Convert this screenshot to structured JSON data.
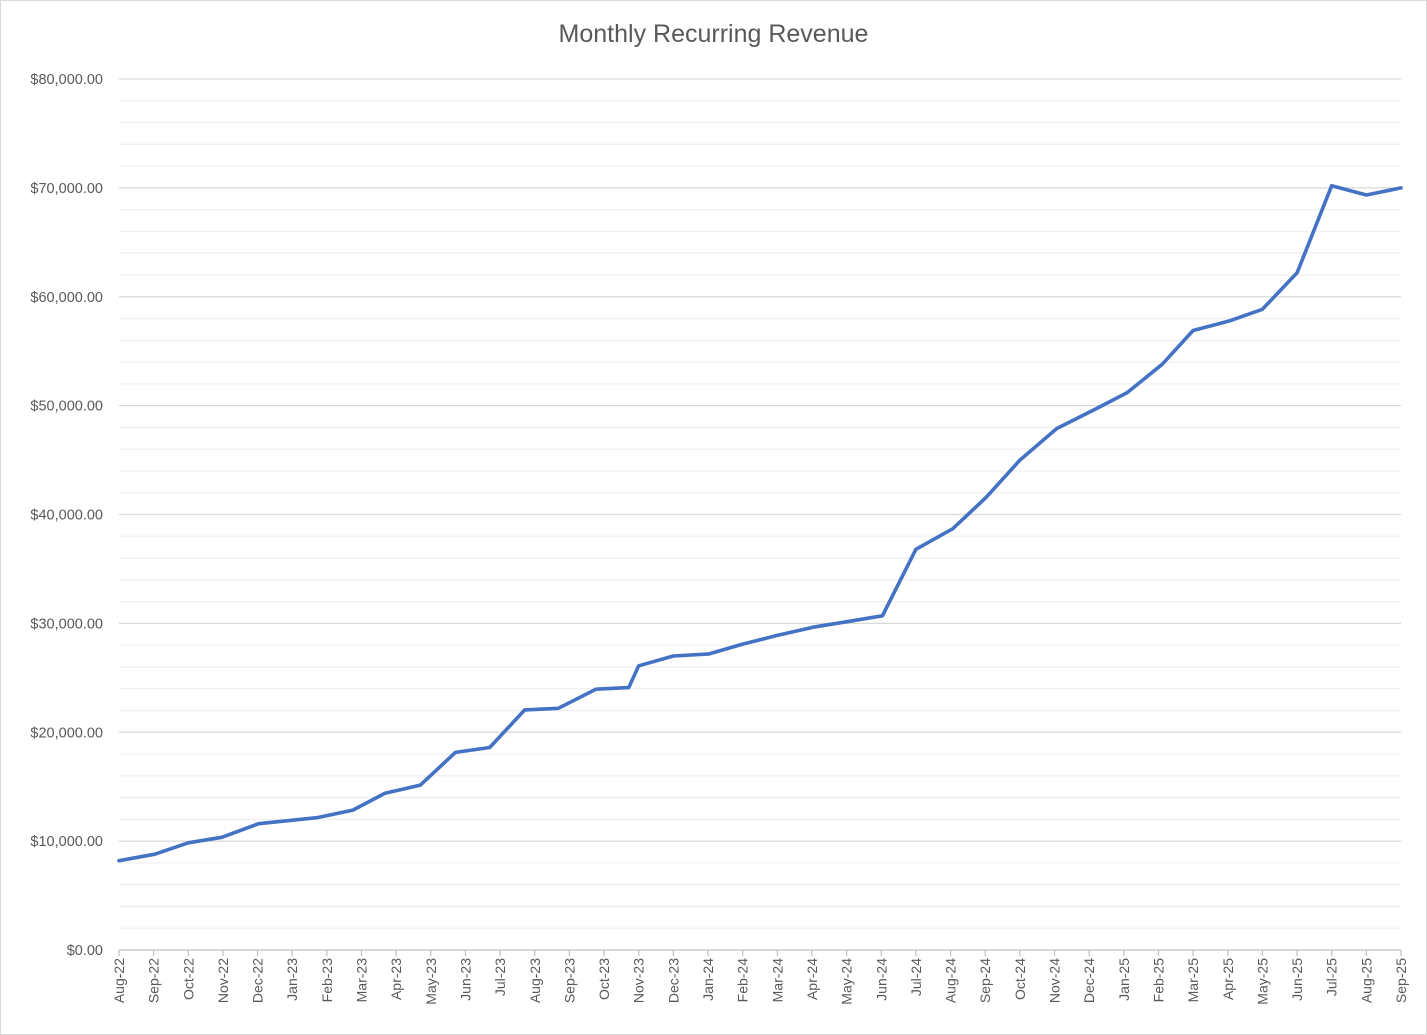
{
  "chart_data": {
    "type": "line",
    "title": "Monthly Recurring Revenue",
    "xlabel": "",
    "ylabel": "",
    "ylim": [
      0,
      80000
    ],
    "y_major_step": 10000,
    "y_minor_step": 2000,
    "grid": true,
    "legend": "none",
    "line_color": "#4472C4",
    "y_tick_labels": [
      "$0.00",
      "$10,000.00",
      "$20,000.00",
      "$30,000.00",
      "$40,000.00",
      "$50,000.00",
      "$60,000.00",
      "$70,000.00",
      "$80,000.00"
    ],
    "x_tick_labels": [
      "Aug-22",
      "Sep-22",
      "Oct-22",
      "Nov-22",
      "Dec-22",
      "Jan-23",
      "Feb-23",
      "Mar-23",
      "Apr-23",
      "May-23",
      "Jun-23",
      "Jul-23",
      "Aug-23",
      "Sep-23",
      "Oct-23",
      "Nov-23",
      "Dec-23",
      "Jan-24",
      "Feb-24",
      "Mar-24",
      "Apr-24",
      "May-24",
      "Jun-24",
      "Jul-24",
      "Aug-24",
      "Sep-24",
      "Oct-24",
      "Nov-24",
      "Dec-24",
      "Jan-25",
      "Feb-25",
      "Mar-25",
      "Apr-25",
      "May-25",
      "Jun-25",
      "Jul-25",
      "Aug-25",
      "Sep-25"
    ],
    "series": [
      {
        "x": [
          "2022-08-01",
          "2022-09-02",
          "2022-10-01",
          "2022-10-31",
          "2022-12-02",
          "2023-01-23",
          "2023-02-22",
          "2023-03-22",
          "2023-04-22",
          "2023-05-23",
          "2023-06-22",
          "2023-07-23",
          "2023-08-22",
          "2023-09-24",
          "2023-10-23",
          "2023-11-01",
          "2023-12-01",
          "2024-01-02",
          "2024-02-01",
          "2024-03-01",
          "2024-04-02",
          "2024-05-04",
          "2024-06-02",
          "2024-07-01",
          "2024-08-03",
          "2024-09-02",
          "2024-10-01",
          "2024-11-03",
          "2024-12-07",
          "2025-01-04",
          "2025-02-04",
          "2025-03-01",
          "2025-04-03",
          "2025-05-01",
          "2025-06-01",
          "2025-07-01",
          "2025-08-01",
          "2025-09-01"
        ],
        "values": [
          8200,
          8800,
          9850,
          10350,
          11600,
          12150,
          12850,
          14400,
          15150,
          18150,
          18600,
          22050,
          22200,
          23950,
          24100,
          26100,
          27000,
          27200,
          28100,
          28900,
          29650,
          30200,
          30700,
          36800,
          38700,
          41600,
          45000,
          47900,
          49700,
          51200,
          53800,
          56900,
          57800,
          58850,
          62200,
          70200,
          69350,
          70000
        ]
      }
    ]
  }
}
